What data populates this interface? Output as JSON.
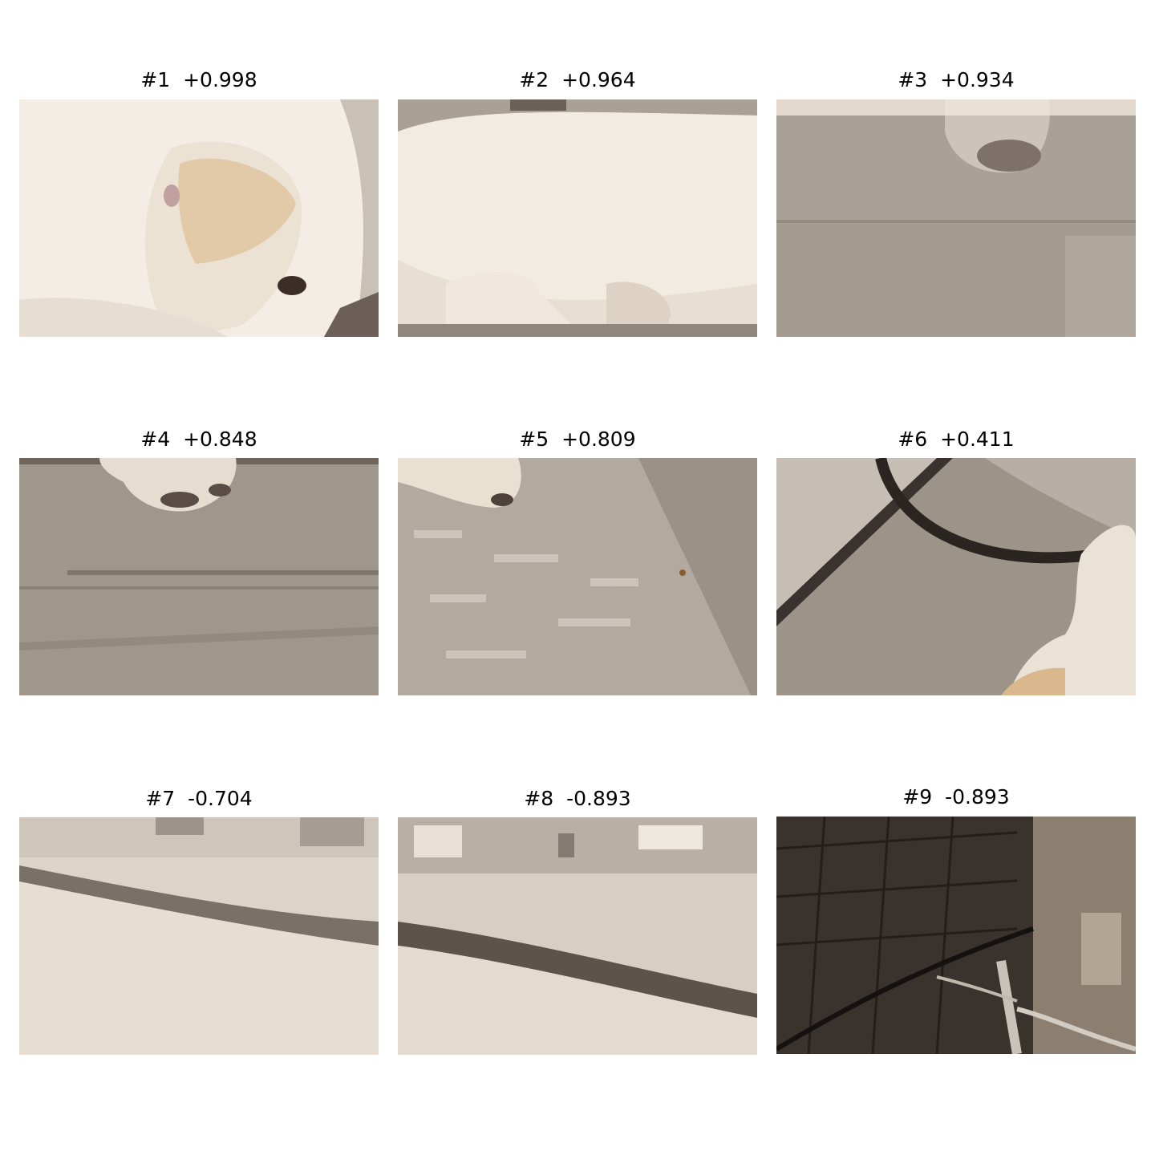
{
  "tiles": [
    {
      "label": "#1  +0.998"
    },
    {
      "label": "#2  +0.964"
    },
    {
      "label": "#3  +0.934"
    },
    {
      "label": "#4  +0.848"
    },
    {
      "label": "#5  +0.809"
    },
    {
      "label": "#6  +0.411"
    },
    {
      "label": "#7  -0.704"
    },
    {
      "label": "#8  -0.893"
    },
    {
      "label": "#9  -0.893"
    }
  ]
}
